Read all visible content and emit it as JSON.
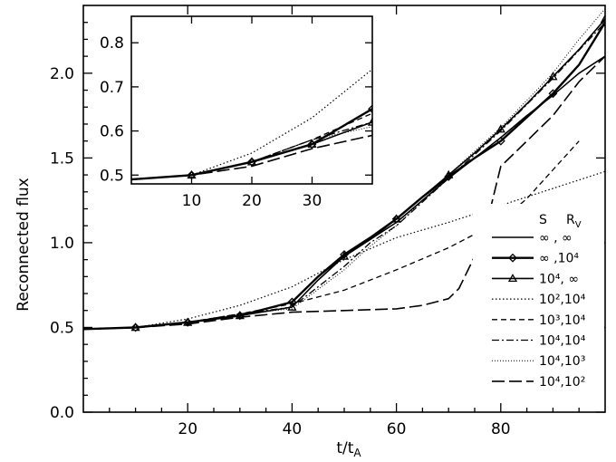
{
  "chart_data": {
    "type": "line",
    "xlabel": "t/t",
    "xlabel_sub": "A",
    "ylabel": "Reconnected flux",
    "xlim": [
      0,
      100
    ],
    "ylim": [
      0,
      2.4
    ],
    "xticks": [
      20,
      40,
      60,
      80
    ],
    "yticks": [
      0.0,
      0.5,
      1.0,
      1.5,
      2.0
    ],
    "ytick_labels": [
      "0.0",
      "0.5",
      "1.0",
      "1.5",
      "2.0"
    ],
    "legend": {
      "placement": "right",
      "header": [
        "S",
        "R",
        "V"
      ],
      "entries": [
        {
          "label": "∞ , ∞",
          "dash": "solid",
          "width": 1.6,
          "marker": "none"
        },
        {
          "label": "∞ ,10⁴",
          "dash": "solid",
          "width": 2.4,
          "marker": "diamond"
        },
        {
          "label": "10⁴, ∞",
          "dash": "solid",
          "width": 1.6,
          "marker": "triangle"
        },
        {
          "label": "10²,10⁴",
          "dash": "dotted",
          "width": 1.2,
          "marker": "none"
        },
        {
          "label": "10³,10⁴",
          "dash": "dashed",
          "width": 1.3,
          "marker": "none"
        },
        {
          "label": "10⁴,10⁴",
          "dash": "dashdot",
          "width": 1.3,
          "marker": "none"
        },
        {
          "label": "10⁴,10³",
          "dash": "fine-dotted",
          "width": 1.0,
          "marker": "none"
        },
        {
          "label": "10⁴,10²",
          "dash": "longdash",
          "width": 1.6,
          "marker": "none"
        }
      ]
    },
    "series": [
      {
        "id": "inf_inf",
        "x": [
          0,
          10,
          20,
          30,
          40,
          45,
          50,
          55,
          60,
          65,
          70,
          75,
          80,
          85,
          90,
          95,
          100
        ],
        "y": [
          0.49,
          0.5,
          0.53,
          0.57,
          0.65,
          0.8,
          0.92,
          1.02,
          1.12,
          1.25,
          1.38,
          1.5,
          1.62,
          1.75,
          1.87,
          2.0,
          2.1
        ]
      },
      {
        "id": "inf_1e4",
        "x": [
          0,
          10,
          20,
          30,
          40,
          45,
          50,
          55,
          60,
          65,
          70,
          75,
          80,
          85,
          90,
          95,
          100
        ],
        "y": [
          0.49,
          0.5,
          0.53,
          0.57,
          0.65,
          0.8,
          0.93,
          1.03,
          1.14,
          1.27,
          1.39,
          1.5,
          1.6,
          1.74,
          1.88,
          2.05,
          2.3
        ]
      },
      {
        "id": "1e4_inf",
        "x": [
          0,
          10,
          20,
          30,
          40,
          45,
          50,
          55,
          60,
          65,
          70,
          75,
          80,
          85,
          90,
          95,
          100
        ],
        "y": [
          0.49,
          0.5,
          0.53,
          0.57,
          0.62,
          0.78,
          0.92,
          1.02,
          1.14,
          1.27,
          1.4,
          1.53,
          1.67,
          1.82,
          1.98,
          2.14,
          2.32
        ]
      },
      {
        "id": "1e2_1e4",
        "x": [
          0,
          10,
          20,
          30,
          40,
          50,
          60,
          70,
          80,
          90,
          100
        ],
        "y": [
          0.49,
          0.5,
          0.55,
          0.63,
          0.74,
          0.9,
          1.03,
          1.12,
          1.22,
          1.32,
          1.42
        ]
      },
      {
        "id": "1e3_1e4",
        "x": [
          0,
          10,
          20,
          30,
          40,
          50,
          60,
          70,
          80,
          85,
          90,
          95
        ],
        "y": [
          0.49,
          0.5,
          0.53,
          0.58,
          0.64,
          0.72,
          0.84,
          0.97,
          1.13,
          1.26,
          1.43,
          1.6
        ]
      },
      {
        "id": "1e4_1e4",
        "x": [
          0,
          10,
          20,
          30,
          40,
          50,
          55,
          60,
          70,
          80,
          90,
          100
        ],
        "y": [
          0.49,
          0.5,
          0.53,
          0.58,
          0.62,
          0.86,
          1.0,
          1.1,
          1.38,
          1.66,
          1.97,
          2.3
        ]
      },
      {
        "id": "1e4_1e3",
        "x": [
          0,
          10,
          20,
          30,
          40,
          50,
          55,
          60,
          70,
          80,
          90,
          95,
          100
        ],
        "y": [
          0.49,
          0.5,
          0.53,
          0.58,
          0.61,
          0.84,
          0.98,
          1.1,
          1.4,
          1.68,
          2.0,
          2.2,
          2.38
        ]
      },
      {
        "id": "1e4_1e2",
        "x": [
          0,
          10,
          20,
          30,
          40,
          50,
          60,
          65,
          70,
          72,
          75,
          78,
          80,
          85,
          90,
          95,
          100
        ],
        "y": [
          0.49,
          0.5,
          0.52,
          0.56,
          0.59,
          0.6,
          0.61,
          0.63,
          0.67,
          0.73,
          0.92,
          1.2,
          1.45,
          1.6,
          1.75,
          1.95,
          2.1
        ]
      }
    ],
    "inset": {
      "xlim": [
        0,
        40
      ],
      "ylim": [
        0.48,
        0.86
      ],
      "xticks": [
        10,
        20,
        30
      ],
      "yticks": [
        0.5,
        0.6,
        0.7,
        0.8
      ],
      "ytick_labels": [
        "0.5",
        "0.6",
        "0.7",
        "0.8"
      ]
    }
  }
}
